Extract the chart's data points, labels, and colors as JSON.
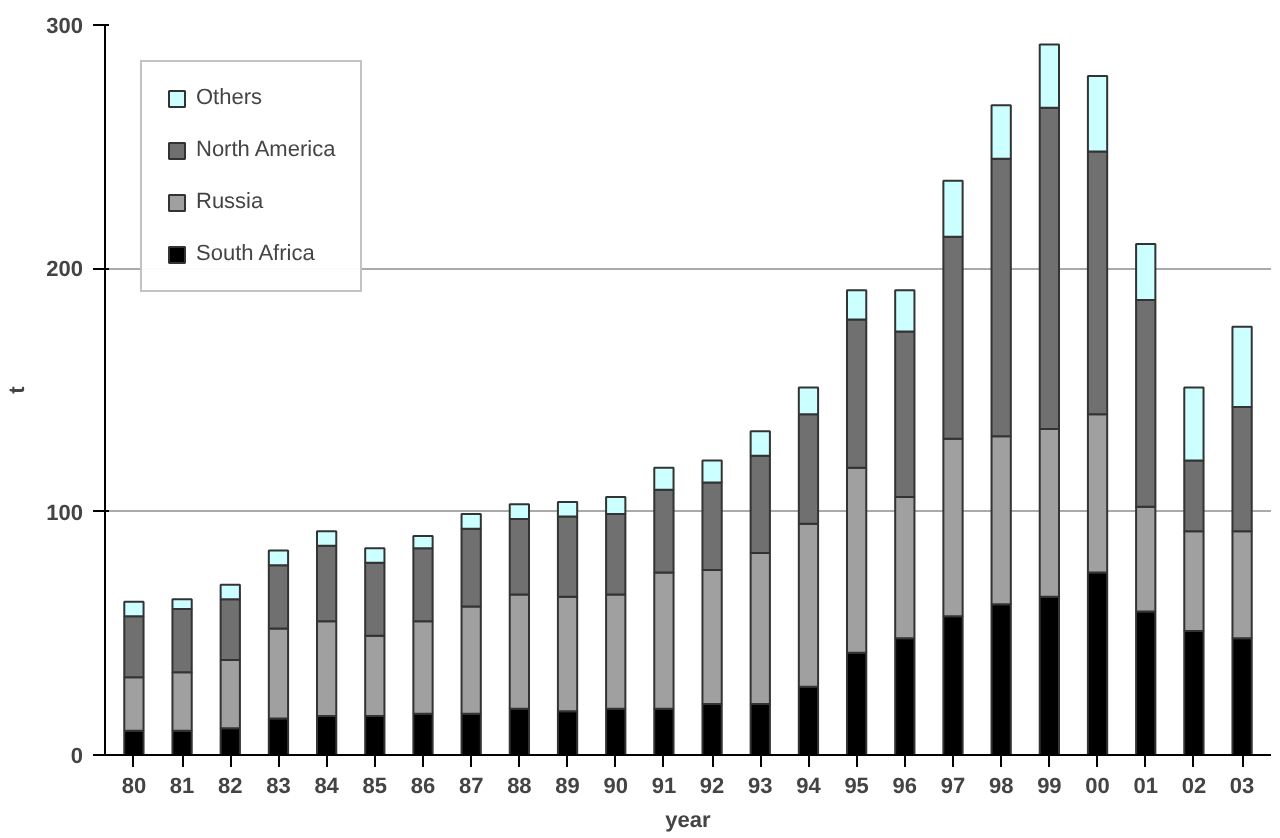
{
  "chart_data": {
    "type": "bar",
    "stacked": true,
    "xlabel": "year",
    "ylabel": "t",
    "categories": [
      "80",
      "81",
      "82",
      "83",
      "84",
      "85",
      "86",
      "87",
      "88",
      "89",
      "90",
      "91",
      "92",
      "93",
      "94",
      "95",
      "96",
      "97",
      "98",
      "99",
      "00",
      "01",
      "02",
      "03"
    ],
    "series": [
      {
        "name": "South Africa",
        "color": "#000000",
        "values": [
          10,
          10,
          11,
          15,
          16,
          16,
          17,
          17,
          19,
          18,
          19,
          19,
          21,
          21,
          28,
          42,
          48,
          57,
          62,
          65,
          75,
          59,
          51,
          48
        ]
      },
      {
        "name": "Russia",
        "color": "#a0a0a0",
        "values": [
          22,
          24,
          28,
          37,
          39,
          33,
          38,
          44,
          47,
          47,
          47,
          56,
          55,
          62,
          67,
          76,
          58,
          73,
          69,
          69,
          65,
          43,
          41,
          44
        ]
      },
      {
        "name": "North America",
        "color": "#707070",
        "values": [
          25,
          26,
          25,
          26,
          31,
          30,
          30,
          32,
          31,
          33,
          33,
          34,
          36,
          40,
          45,
          61,
          68,
          83,
          114,
          132,
          108,
          85,
          29,
          51
        ]
      },
      {
        "name": "Others",
        "color": "#ccffff",
        "values": [
          6,
          4,
          6,
          6,
          6,
          6,
          5,
          6,
          6,
          6,
          7,
          9,
          9,
          10,
          11,
          12,
          17,
          23,
          22,
          26,
          31,
          23,
          30,
          33
        ]
      }
    ],
    "ylim": [
      0,
      300
    ],
    "yticks": [
      0,
      100,
      200,
      300
    ],
    "grid": "y",
    "legend": "top left"
  }
}
